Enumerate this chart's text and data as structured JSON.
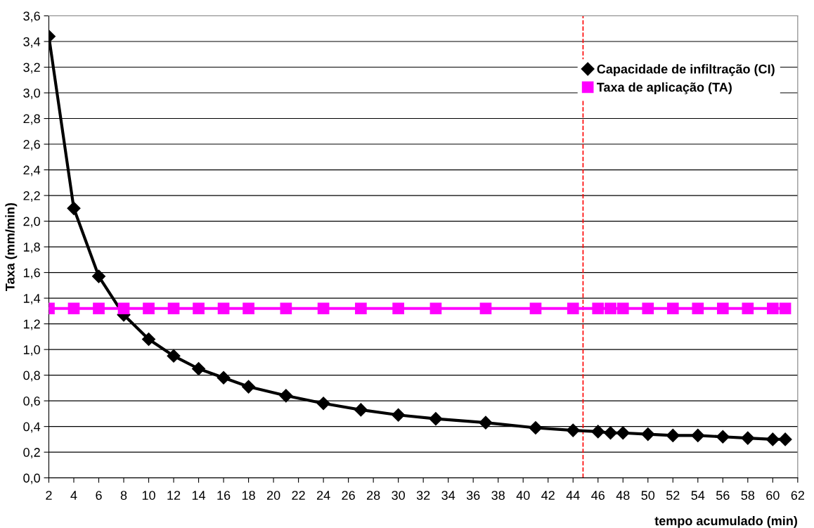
{
  "chart_data": {
    "type": "line",
    "xlabel": "tempo acumulado (min)",
    "ylabel": "Taxa (mm/min)",
    "xlim": [
      2,
      62
    ],
    "xticks": [
      2,
      4,
      6,
      8,
      10,
      12,
      14,
      16,
      18,
      20,
      22,
      24,
      26,
      28,
      30,
      32,
      34,
      36,
      38,
      40,
      42,
      44,
      46,
      48,
      50,
      52,
      54,
      56,
      58,
      60,
      62
    ],
    "ylim": [
      0,
      3.6
    ],
    "yticks": [
      {
        "value": 0,
        "label": "0,0"
      },
      {
        "value": 0.2,
        "label": "0,2"
      },
      {
        "value": 0.4,
        "label": "0,4"
      },
      {
        "value": 0.6,
        "label": "0,6"
      },
      {
        "value": 0.8,
        "label": "0,8"
      },
      {
        "value": 1.0,
        "label": "1,0"
      },
      {
        "value": 1.2,
        "label": "1,2"
      },
      {
        "value": 1.4,
        "label": "1,4"
      },
      {
        "value": 1.6,
        "label": "1,6"
      },
      {
        "value": 1.8,
        "label": "1,8"
      },
      {
        "value": 2.0,
        "label": "2,0"
      },
      {
        "value": 2.2,
        "label": "2,2"
      },
      {
        "value": 2.4,
        "label": "2,4"
      },
      {
        "value": 2.6,
        "label": "2,6"
      },
      {
        "value": 2.8,
        "label": "2,8"
      },
      {
        "value": 3.0,
        "label": "3,0"
      },
      {
        "value": 3.2,
        "label": "3,2"
      },
      {
        "value": 3.4,
        "label": "3,4"
      },
      {
        "value": 3.6,
        "label": "3,6"
      }
    ],
    "x": [
      2,
      4,
      6,
      8,
      10,
      12,
      14,
      16,
      18,
      21,
      24,
      27,
      30,
      33,
      37,
      41,
      44,
      46,
      47,
      48,
      50,
      52,
      54,
      56,
      58,
      60,
      61
    ],
    "series": [
      {
        "name": "Capacidade de infiltração (CI)",
        "color": "#000000",
        "marker": "diamond",
        "values": [
          3.44,
          2.1,
          1.57,
          1.27,
          1.08,
          0.95,
          0.85,
          0.78,
          0.71,
          0.64,
          0.58,
          0.53,
          0.49,
          0.46,
          0.43,
          0.39,
          0.37,
          0.36,
          0.35,
          0.35,
          0.34,
          0.33,
          0.33,
          0.32,
          0.31,
          0.3,
          0.3
        ]
      },
      {
        "name": "Taxa de aplicação (TA)",
        "color": "#ff00ff",
        "marker": "square",
        "values": [
          1.32,
          1.32,
          1.32,
          1.32,
          1.32,
          1.32,
          1.32,
          1.32,
          1.32,
          1.32,
          1.32,
          1.32,
          1.32,
          1.32,
          1.32,
          1.32,
          1.32,
          1.32,
          1.32,
          1.32,
          1.32,
          1.32,
          1.32,
          1.32,
          1.32,
          1.32,
          1.32
        ]
      }
    ],
    "ref_lines": [
      {
        "axis": "x",
        "value": 44.8,
        "color": "#ff0000",
        "line_style": "dashed"
      }
    ],
    "grid": "y",
    "legend": "top right"
  }
}
